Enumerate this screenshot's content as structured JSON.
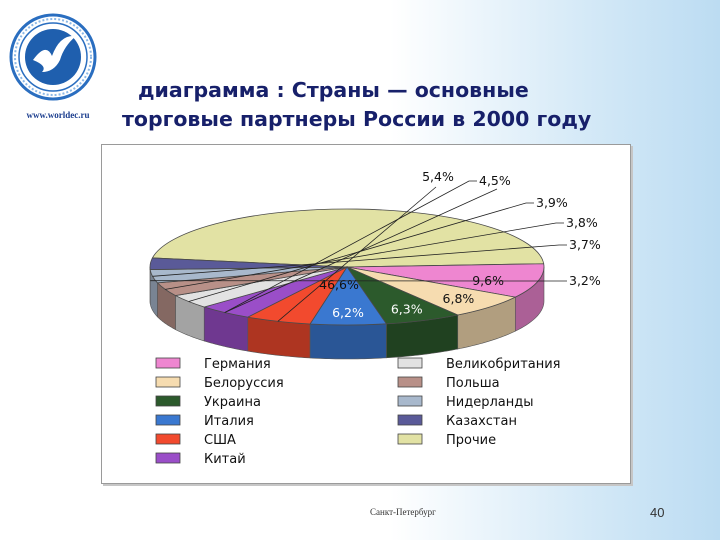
{
  "header": {
    "title_line1": "диаграмма : Страны — основные",
    "title_line2": "торговые партнеры России в 2000 году",
    "site_url": "www.worldec.ru"
  },
  "footer": {
    "city": "Санкт-Петербург",
    "page_number": "40"
  },
  "colors": {
    "title": "#17206a",
    "background_accent": "#bcdcf2"
  },
  "chart_data": {
    "type": "pie",
    "style": "3d",
    "title": "",
    "slices": [
      {
        "name": "Прочие",
        "value": 46.6,
        "label": "46,6%",
        "color": "#e2e2a4"
      },
      {
        "name": "Германия",
        "value": 9.6,
        "label": "9,6%",
        "color": "#ee86d0"
      },
      {
        "name": "Белоруссия",
        "value": 6.8,
        "label": "6,8%",
        "color": "#f6dcb0"
      },
      {
        "name": "Украина",
        "value": 6.3,
        "label": "6,3%",
        "color": "#2c5a2c"
      },
      {
        "name": "Италия",
        "value": 6.2,
        "label": "6,2%",
        "color": "#3a78d0"
      },
      {
        "name": "США",
        "value": 5.4,
        "label": "5,4%",
        "color": "#f24a2e"
      },
      {
        "name": "Китай",
        "value": 4.5,
        "label": "4,5%",
        "color": "#9a4ec8"
      },
      {
        "name": "Великобритания",
        "value": 3.9,
        "label": "3,9%",
        "color": "#e2e2e2"
      },
      {
        "name": "Польша",
        "value": 3.8,
        "label": "3,8%",
        "color": "#b89088"
      },
      {
        "name": "Нидерланды",
        "value": 3.7,
        "label": "3,7%",
        "color": "#a8b8cc"
      },
      {
        "name": "Казахстан",
        "value": 3.2,
        "label": "3,2%",
        "color": "#5a5a98"
      }
    ],
    "legend": {
      "position": "bottom",
      "left_column": [
        "Германия",
        "Белоруссия",
        "Украина",
        "Италия",
        "США",
        "Китай"
      ],
      "right_column": [
        "Великобритания",
        "Польша",
        "Нидерланды",
        "Казахстан",
        "Прочие"
      ]
    }
  }
}
